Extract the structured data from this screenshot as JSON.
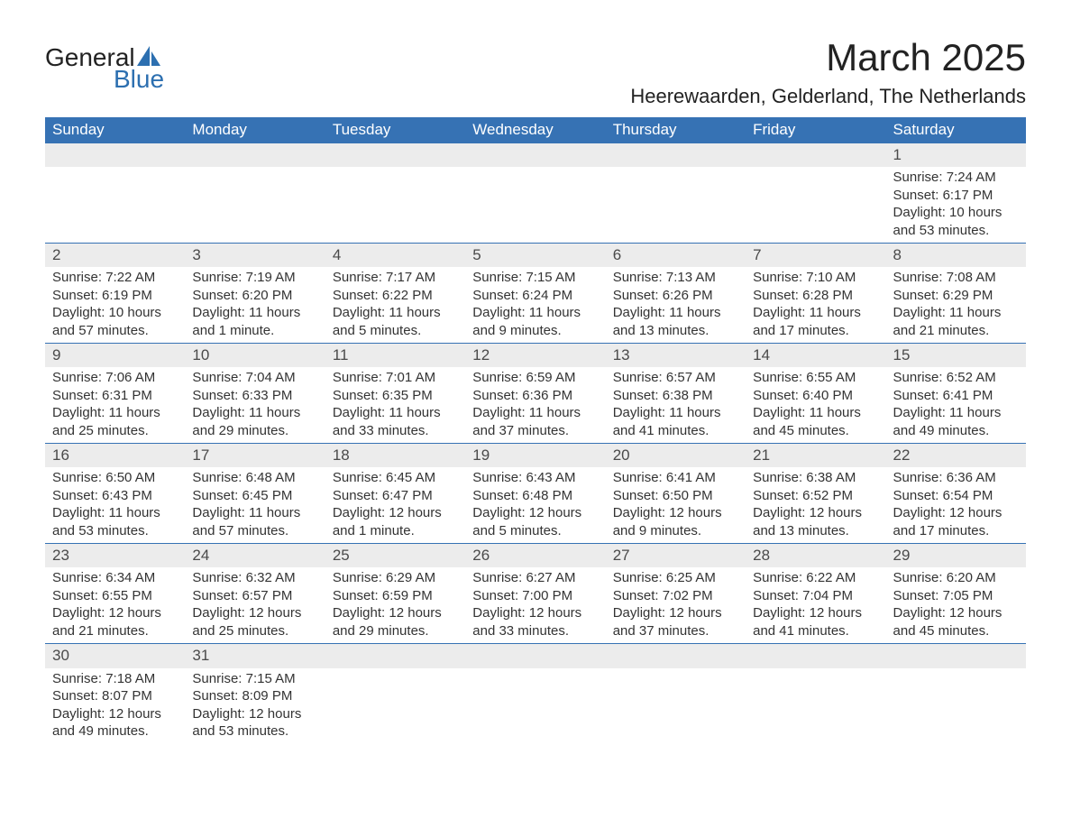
{
  "logo": {
    "word1": "General",
    "word2": "Blue"
  },
  "title": "March 2025",
  "location": "Heerewaarden, Gelderland, The Netherlands",
  "colors": {
    "header_bg": "#3672b4",
    "header_text": "#ffffff",
    "daynum_bg": "#ececec",
    "row_divider": "#3672b4",
    "logo_accent": "#2c6fb0",
    "page_bg": "#ffffff",
    "body_text": "#333333"
  },
  "fonts": {
    "title_size_pt": 42,
    "location_size_pt": 22,
    "weekday_size_pt": 17,
    "daynum_size_pt": 17,
    "body_size_pt": 15,
    "family": "Arial"
  },
  "weekdays": [
    "Sunday",
    "Monday",
    "Tuesday",
    "Wednesday",
    "Thursday",
    "Friday",
    "Saturday"
  ],
  "labels": {
    "sunrise": "Sunrise:",
    "sunset": "Sunset:",
    "daylight": "Daylight:"
  },
  "weeks": [
    [
      null,
      null,
      null,
      null,
      null,
      null,
      {
        "n": "1",
        "sr": "7:24 AM",
        "ss": "6:17 PM",
        "dl": "10 hours and 53 minutes."
      }
    ],
    [
      {
        "n": "2",
        "sr": "7:22 AM",
        "ss": "6:19 PM",
        "dl": "10 hours and 57 minutes."
      },
      {
        "n": "3",
        "sr": "7:19 AM",
        "ss": "6:20 PM",
        "dl": "11 hours and 1 minute."
      },
      {
        "n": "4",
        "sr": "7:17 AM",
        "ss": "6:22 PM",
        "dl": "11 hours and 5 minutes."
      },
      {
        "n": "5",
        "sr": "7:15 AM",
        "ss": "6:24 PM",
        "dl": "11 hours and 9 minutes."
      },
      {
        "n": "6",
        "sr": "7:13 AM",
        "ss": "6:26 PM",
        "dl": "11 hours and 13 minutes."
      },
      {
        "n": "7",
        "sr": "7:10 AM",
        "ss": "6:28 PM",
        "dl": "11 hours and 17 minutes."
      },
      {
        "n": "8",
        "sr": "7:08 AM",
        "ss": "6:29 PM",
        "dl": "11 hours and 21 minutes."
      }
    ],
    [
      {
        "n": "9",
        "sr": "7:06 AM",
        "ss": "6:31 PM",
        "dl": "11 hours and 25 minutes."
      },
      {
        "n": "10",
        "sr": "7:04 AM",
        "ss": "6:33 PM",
        "dl": "11 hours and 29 minutes."
      },
      {
        "n": "11",
        "sr": "7:01 AM",
        "ss": "6:35 PM",
        "dl": "11 hours and 33 minutes."
      },
      {
        "n": "12",
        "sr": "6:59 AM",
        "ss": "6:36 PM",
        "dl": "11 hours and 37 minutes."
      },
      {
        "n": "13",
        "sr": "6:57 AM",
        "ss": "6:38 PM",
        "dl": "11 hours and 41 minutes."
      },
      {
        "n": "14",
        "sr": "6:55 AM",
        "ss": "6:40 PM",
        "dl": "11 hours and 45 minutes."
      },
      {
        "n": "15",
        "sr": "6:52 AM",
        "ss": "6:41 PM",
        "dl": "11 hours and 49 minutes."
      }
    ],
    [
      {
        "n": "16",
        "sr": "6:50 AM",
        "ss": "6:43 PM",
        "dl": "11 hours and 53 minutes."
      },
      {
        "n": "17",
        "sr": "6:48 AM",
        "ss": "6:45 PM",
        "dl": "11 hours and 57 minutes."
      },
      {
        "n": "18",
        "sr": "6:45 AM",
        "ss": "6:47 PM",
        "dl": "12 hours and 1 minute."
      },
      {
        "n": "19",
        "sr": "6:43 AM",
        "ss": "6:48 PM",
        "dl": "12 hours and 5 minutes."
      },
      {
        "n": "20",
        "sr": "6:41 AM",
        "ss": "6:50 PM",
        "dl": "12 hours and 9 minutes."
      },
      {
        "n": "21",
        "sr": "6:38 AM",
        "ss": "6:52 PM",
        "dl": "12 hours and 13 minutes."
      },
      {
        "n": "22",
        "sr": "6:36 AM",
        "ss": "6:54 PM",
        "dl": "12 hours and 17 minutes."
      }
    ],
    [
      {
        "n": "23",
        "sr": "6:34 AM",
        "ss": "6:55 PM",
        "dl": "12 hours and 21 minutes."
      },
      {
        "n": "24",
        "sr": "6:32 AM",
        "ss": "6:57 PM",
        "dl": "12 hours and 25 minutes."
      },
      {
        "n": "25",
        "sr": "6:29 AM",
        "ss": "6:59 PM",
        "dl": "12 hours and 29 minutes."
      },
      {
        "n": "26",
        "sr": "6:27 AM",
        "ss": "7:00 PM",
        "dl": "12 hours and 33 minutes."
      },
      {
        "n": "27",
        "sr": "6:25 AM",
        "ss": "7:02 PM",
        "dl": "12 hours and 37 minutes."
      },
      {
        "n": "28",
        "sr": "6:22 AM",
        "ss": "7:04 PM",
        "dl": "12 hours and 41 minutes."
      },
      {
        "n": "29",
        "sr": "6:20 AM",
        "ss": "7:05 PM",
        "dl": "12 hours and 45 minutes."
      }
    ],
    [
      {
        "n": "30",
        "sr": "7:18 AM",
        "ss": "8:07 PM",
        "dl": "12 hours and 49 minutes."
      },
      {
        "n": "31",
        "sr": "7:15 AM",
        "ss": "8:09 PM",
        "dl": "12 hours and 53 minutes."
      },
      null,
      null,
      null,
      null,
      null
    ]
  ]
}
